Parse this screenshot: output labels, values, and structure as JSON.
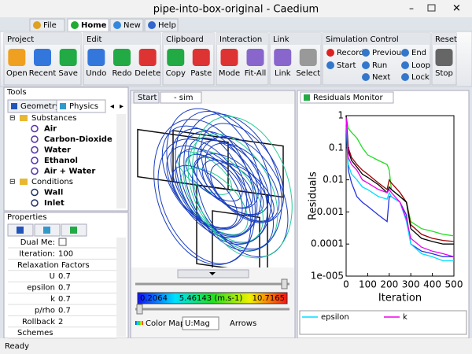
{
  "window": {
    "title": "pipe-into-box-original - Caedium"
  },
  "menu": {
    "tabs": [
      "File",
      "Home",
      "New",
      "Help"
    ]
  },
  "ribbon": {
    "groups": [
      {
        "title": "Project",
        "buttons": [
          "Open",
          "Recent",
          "Save"
        ]
      },
      {
        "title": "Edit",
        "buttons": [
          "Undo",
          "Redo",
          "Delete"
        ]
      },
      {
        "title": "Clipboard",
        "buttons": [
          "Copy",
          "Paste"
        ]
      },
      {
        "title": "Interaction",
        "buttons": [
          "Mode",
          "Fit-All"
        ]
      },
      {
        "title": "Link",
        "buttons": [
          "Link",
          "Select"
        ]
      },
      {
        "title": "Simulation Control",
        "buttons": [
          "Record",
          "Start",
          "Previous",
          "Run",
          "Next",
          "End",
          "Loop",
          "Lock"
        ]
      },
      {
        "title": "Reset",
        "buttons": [
          "Stop"
        ]
      }
    ]
  },
  "tools": {
    "title": "Tools",
    "tabs": [
      "Geometry",
      "Physics"
    ],
    "tree": [
      {
        "label": "Substances",
        "children": [
          "Air",
          "Carbon-Dioxide",
          "Water",
          "Ethanol",
          "Air + Water"
        ]
      },
      {
        "label": "Conditions",
        "children": [
          "Wall",
          "Inlet"
        ]
      }
    ]
  },
  "properties": {
    "title": "Properties",
    "rows": [
      {
        "label": "Dual Me:"
      },
      {
        "label": "Iteration:",
        "value": 100
      },
      {
        "label": "Relaxation Factors"
      },
      {
        "label": "U",
        "value": 0.7
      },
      {
        "label": "epsilon",
        "value": 0.7
      },
      {
        "label": "k",
        "value": 0.7
      },
      {
        "label": "p/rho",
        "value": 0.7
      },
      {
        "label": "Rollback",
        "value": 2
      },
      {
        "label": "Schemes"
      }
    ]
  },
  "viewer": {
    "tabs": [
      "Start",
      "- sim"
    ],
    "colorbar": {
      "min": 0.2064,
      "mid": "5.46143 (m.s-1)",
      "max": 10.7165
    },
    "controls": {
      "color_map": "Color Map",
      "field": "U:Mag",
      "arrows": "Arrows"
    }
  },
  "monitor": {
    "tab": "Residuals Monitor"
  },
  "chart_data": {
    "type": "line",
    "xlabel": "Iteration",
    "ylabel": "Residuals",
    "log_y": true,
    "x": [
      0,
      10,
      25,
      50,
      75,
      100,
      150,
      190,
      200,
      210,
      250,
      280,
      300,
      350,
      400,
      450,
      500
    ],
    "xlim": [
      0,
      500
    ],
    "xticks": [
      0,
      100,
      200,
      300,
      400,
      500
    ],
    "ylim": [
      1e-05,
      1
    ],
    "yticks": [
      {
        "value": 1e-05,
        "label": "1e-005"
      },
      0.0001,
      0.001,
      0.01,
      0.1,
      1
    ],
    "series": [
      {
        "color": "#22dd22",
        "values": [
          1,
          0.4,
          0.3,
          0.2,
          0.1,
          0.06,
          0.04,
          0.03,
          0.02,
          0.005,
          0.003,
          0.002,
          0.0005,
          0.0003,
          0.00025,
          0.0002,
          0.00018
        ]
      },
      {
        "color": "#2233dd",
        "values": [
          0.5,
          0.02,
          0.008,
          0.003,
          0.002,
          0.0015,
          0.0008,
          0.0005,
          0.003,
          0.003,
          0.002,
          0.0008,
          0.0001,
          6e-05,
          5e-05,
          4e-05,
          4e-05
        ]
      },
      {
        "color": "#990000",
        "values": [
          1,
          0.1,
          0.05,
          0.03,
          0.02,
          0.015,
          0.008,
          0.005,
          0.01,
          0.008,
          0.004,
          0.002,
          0.0004,
          0.0002,
          0.00015,
          0.00013,
          0.00012
        ]
      },
      {
        "color": "#000000",
        "values": [
          1,
          0.08,
          0.04,
          0.025,
          0.015,
          0.012,
          0.007,
          0.004,
          0.006,
          0.005,
          0.003,
          0.002,
          0.0003,
          0.00015,
          0.00012,
          0.0001,
          0.0001
        ]
      },
      {
        "name": "epsilon",
        "color": "#00ddff",
        "values": [
          0.8,
          0.03,
          0.015,
          0.01,
          0.006,
          0.005,
          0.003,
          0.0025,
          0.004,
          0.003,
          0.002,
          0.0005,
          0.0001,
          5e-05,
          4e-05,
          3e-05,
          3e-05
        ]
      },
      {
        "name": "k",
        "color": "#ee00ee",
        "values": [
          0.9,
          0.05,
          0.03,
          0.02,
          0.01,
          0.008,
          0.005,
          0.004,
          0.005,
          0.004,
          0.002,
          0.0006,
          0.00015,
          8e-05,
          6e-05,
          5e-05,
          4e-05
        ]
      }
    ]
  },
  "status": "Ready"
}
